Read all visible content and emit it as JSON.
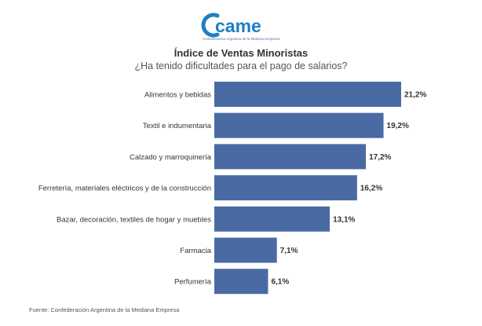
{
  "logo": {
    "wordmark": "came",
    "subtitle": "Confederación Argentina de la Mediana Empresa",
    "color": "#1f7ec2"
  },
  "chart_data": {
    "type": "bar",
    "orientation": "horizontal",
    "title": "Índice de Ventas Minoristas",
    "subtitle": "¿Ha tenido dificultades para el pago de salarios?",
    "categories": [
      "Alimentos y bebidas",
      "Textil e indumentaria",
      "Calzado y marroquinería",
      "Ferretería, materiales eléctricos y de la construcción",
      "Bazar, decoración, textiles de hogar y muebles",
      "Farmacia",
      "Perfumería"
    ],
    "values": [
      21.2,
      19.2,
      17.2,
      16.2,
      13.1,
      7.1,
      6.1
    ],
    "value_labels": [
      "21,2%",
      "19,2%",
      "17,2%",
      "16,2%",
      "13,1%",
      "7,1%",
      "6,1%"
    ],
    "bar_color": "#4a6aa3",
    "xlim": [
      0,
      21.2
    ],
    "grid": false,
    "legend": "none"
  },
  "source": "Fuente: Confederación Argentina de la Mediana Empresa"
}
